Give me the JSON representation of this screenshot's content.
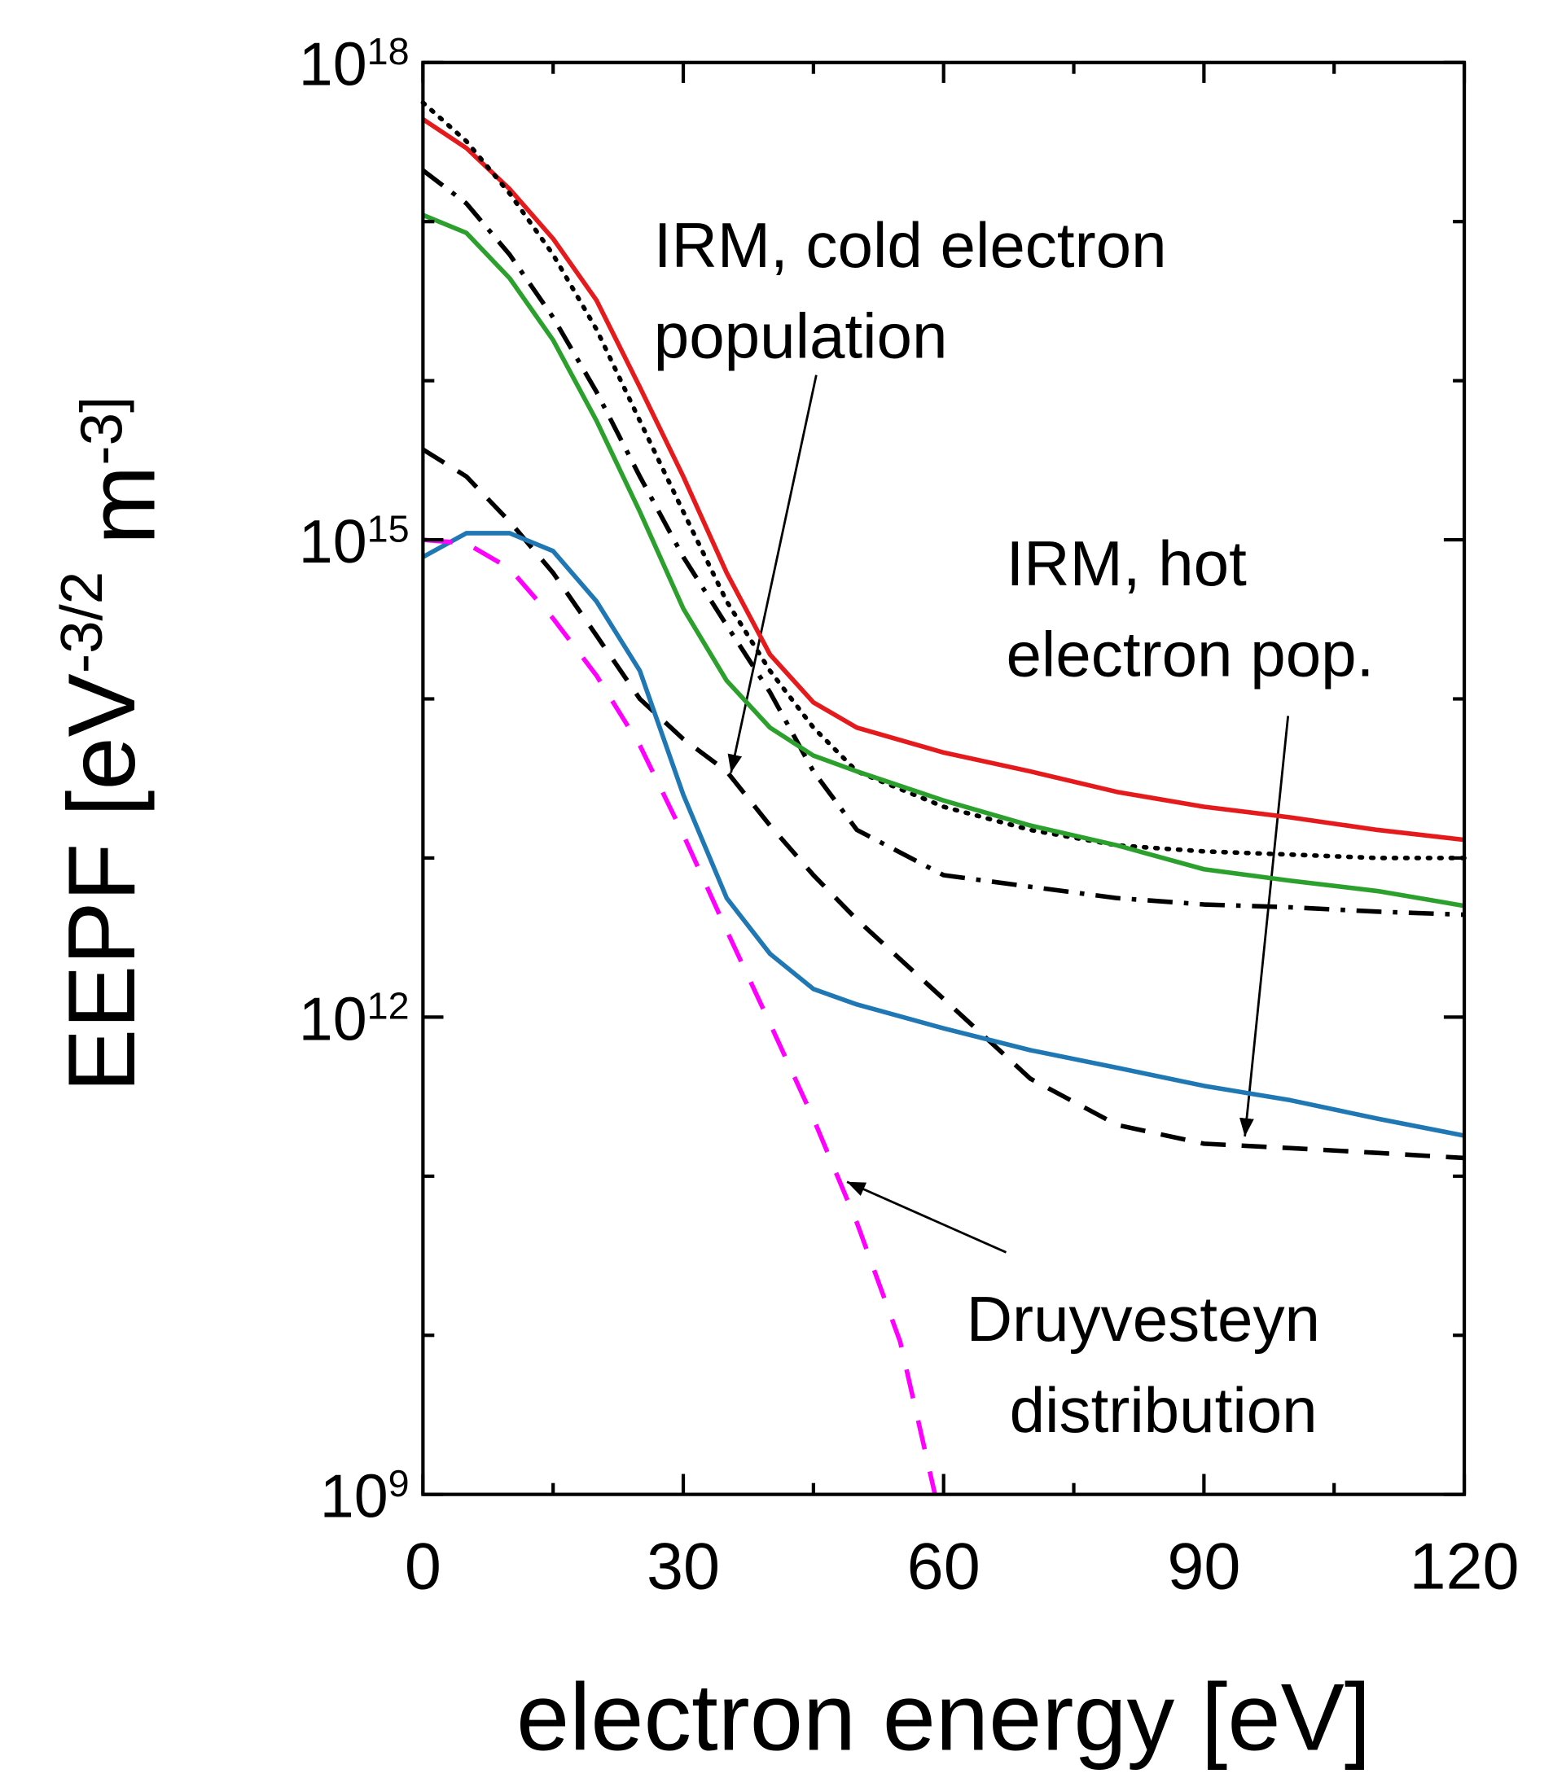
{
  "chart_data": {
    "type": "line",
    "xlabel": "electron energy [eV]",
    "ylabel": "EEPF [eV^-3/2 m^-3]",
    "xlim": [
      0,
      120
    ],
    "xticks": [
      0,
      30,
      60,
      90,
      120
    ],
    "ylim": [
      1000000000.0,
      1e+18
    ],
    "log_y": true,
    "yticks": [
      {
        "value": 1000000000.0,
        "label": "10^9"
      },
      {
        "value": 1000000000000.0,
        "label": "10^12"
      },
      {
        "value": 1000000000000000.0,
        "label": "10^15"
      },
      {
        "value": 1e+18,
        "label": "10^18"
      }
    ],
    "series": [
      {
        "color": "#e41a1c",
        "dash": "solid",
        "x": [
          0,
          5,
          10,
          15,
          20,
          25,
          30,
          35,
          40,
          45,
          50,
          60,
          70,
          80,
          90,
          100,
          110,
          120
        ],
        "values": [
          4.4e+17,
          2.9e+17,
          1.6e+17,
          7.8e+16,
          3.2e+16,
          9100000000000000.0,
          2500000000000000.0,
          620000000000000.0,
          190000000000000.0,
          95000000000000.0,
          66000000000000.0,
          46000000000000.0,
          35000000000000.0,
          26000000000000.0,
          21000000000000.0,
          18000000000000.0,
          15000000000000.0,
          13000000000000.0
        ]
      },
      {
        "color": "#000000",
        "dash": "dotted",
        "x": [
          0,
          5,
          10,
          15,
          20,
          25,
          30,
          35,
          40,
          45,
          50,
          60,
          70,
          80,
          90,
          100,
          110,
          120
        ],
        "values": [
          5.6e+17,
          3.2e+17,
          1.5e+17,
          6.2e+16,
          2.1e+16,
          5600000000000000.0,
          1500000000000000.0,
          410000000000000.0,
          150000000000000.0,
          66000000000000.0,
          35000000000000.0,
          21000000000000.0,
          15000000000000.0,
          12000000000000.0,
          11000000000000.0,
          10500000000000.0,
          10000000000000.0,
          10000000000000.0
        ]
      },
      {
        "color": "#000000",
        "dash": "dashdot",
        "x": [
          0,
          5,
          10,
          15,
          20,
          25,
          30,
          35,
          40,
          45,
          50,
          60,
          70,
          80,
          90,
          100,
          110,
          120
        ],
        "values": [
          2.1e+17,
          1.3e+17,
          6.2e+16,
          2.5e+16,
          8500000000000000.0,
          2500000000000000.0,
          780000000000000.0,
          290000000000000.0,
          110000000000000.0,
          35000000000000.0,
          15000000000000.0,
          7800000000000.0,
          6600000000000.0,
          5600000000000.0,
          5100000000000.0,
          4900000000000.0,
          4600000000000.0,
          4400000000000.0
        ]
      },
      {
        "color": "#2ca02c",
        "dash": "solid",
        "x": [
          0,
          5,
          10,
          15,
          20,
          25,
          30,
          35,
          40,
          45,
          50,
          60,
          70,
          80,
          90,
          100,
          110,
          120
        ],
        "values": [
          1.1e+17,
          8.5e+16,
          4.4e+16,
          1.8e+16,
          5600000000000000.0,
          1500000000000000.0,
          370000000000000.0,
          130000000000000.0,
          66000000000000.0,
          44000000000000.0,
          35000000000000.0,
          23000000000000.0,
          16000000000000.0,
          12000000000000.0,
          8500000000000.0,
          7200000000000.0,
          6200000000000.0,
          5000000000000.0
        ]
      },
      {
        "color": "#000000",
        "dash": "dashed",
        "x": [
          0,
          5,
          10,
          15,
          20,
          25,
          30,
          35,
          40,
          45,
          50,
          60,
          70,
          80,
          90,
          100,
          110,
          120
        ],
        "values": [
          3700000000000000.0,
          2500000000000000.0,
          1300000000000000.0,
          620000000000000.0,
          250000000000000.0,
          100000000000000.0,
          56000000000000.0,
          35000000000000.0,
          16000000000000.0,
          7800000000000.0,
          4100000000000.0,
          1300000000000.0,
          410000000000.0,
          210000000000.0,
          160000000000.0,
          150000000000.0,
          140000000000.0,
          130000000000.0
        ]
      },
      {
        "color": "#1f77b4",
        "dash": "solid",
        "x": [
          0,
          5,
          10,
          15,
          20,
          25,
          30,
          35,
          40,
          45,
          50,
          60,
          70,
          80,
          90,
          100,
          110,
          120
        ],
        "values": [
          780000000000000.0,
          1100000000000000.0,
          1100000000000000.0,
          850000000000000.0,
          410000000000000.0,
          150000000000000.0,
          25000000000000.0,
          5600000000000.0,
          2500000000000.0,
          1500000000000.0,
          1200000000000.0,
          850000000000.0,
          620000000000.0,
          480000000000.0,
          370000000000.0,
          300000000000.0,
          230000000000.0,
          180000000000.0
        ]
      },
      {
        "color": "#ff00ff",
        "dash": "longdash",
        "x": [
          0,
          5,
          10,
          15,
          20,
          25,
          30,
          35,
          40,
          45,
          50,
          55,
          59
        ],
        "values": [
          1000000000000000.0,
          950000000000000.0,
          660000000000000.0,
          320000000000000.0,
          140000000000000.0,
          51000000000000.0,
          14000000000000.0,
          3500000000000.0,
          910000000000.0,
          230000000000.0,
          51000000000.0,
          9100000000.0,
          1000000000.0
        ]
      }
    ],
    "annotations": [
      {
        "lines": [
          "IRM, cold electron",
          "population"
        ]
      },
      {
        "lines": [
          "IRM, hot",
          "electron pop."
        ]
      },
      {
        "lines": [
          "Druyvesteyn",
          "distribution"
        ]
      }
    ]
  }
}
